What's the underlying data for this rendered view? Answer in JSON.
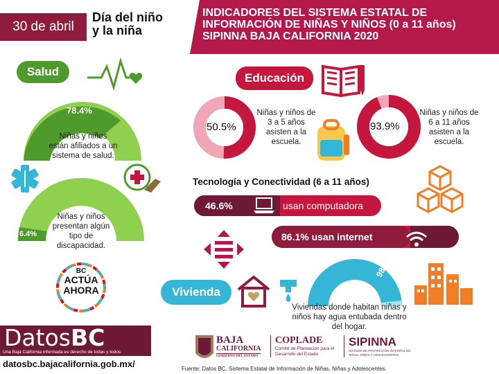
{
  "header": {
    "date": "30 de abril",
    "subtitle_line1": "Día del niño",
    "subtitle_line2": "y la niña",
    "title_line1": "INDICADORES DEL SISTEMA ESTATAL DE",
    "title_line2": "INFORMACIÓN DE NIÑAS Y NIÑOS (0 a 11 años)",
    "title_line3": "SIPINNA BAJA CALIFORNIA 2020"
  },
  "colors": {
    "maroon": "#8f1c3d",
    "crimson": "#c5173e",
    "green": "#4e9a2d",
    "light_green": "#8fd04e",
    "cyan": "#35b6d6",
    "orange": "#f07e26"
  },
  "salud": {
    "label": "Salud",
    "pct_afiliados": "78.4%",
    "pct_afiliados_value": 78.4,
    "afiliados_text": "Niñas y niños están afiliados a un sistema de salud.",
    "pct_discapacidad": "6.4%",
    "pct_discapacidad_value": 6.4,
    "discapacidad_text": "Niñas y niños presentan algún tipo de discapacidad.",
    "icons": [
      "heartbeat-icon",
      "medical-cross-icon",
      "health-hand-icon"
    ]
  },
  "educacion": {
    "label": "Educación",
    "pct_3a5": "50.5%",
    "pct_3a5_value": 50.5,
    "text_3a5": "Niñas y niños de 3 a 5 años asisten a la escuela.",
    "pct_6a11": "93.9%",
    "pct_6a11_value": 93.9,
    "text_6a11": "Niñas y niños de 6 a 11 años asisten a la escuela.",
    "icons": [
      "book-icon",
      "backpack-icon"
    ]
  },
  "tecnologia": {
    "title": "Tecnología y Conectividad (6 a 11 años)",
    "pct_computadora": "46.6%",
    "computadora_text": "usan computadora",
    "internet_text": "86.1% usan internet",
    "pct_internet_value": 86.1,
    "icons": [
      "laptop-icon",
      "wifi-icon",
      "cubes-icon",
      "arrows-icon"
    ]
  },
  "vivienda": {
    "label": "Vivienda",
    "pct_agua": "98.2%",
    "pct_agua_value": 98.2,
    "agua_text": "Viviendas donde habitan niñas y niños hay agua entubada dentro del hogar.",
    "icons": [
      "house-heart-icon",
      "water-tap-icon",
      "buildings-icon"
    ]
  },
  "bc_actua": {
    "line1": "BC",
    "line2": "ACTÚA",
    "line3": "AHORA"
  },
  "footer": {
    "datos_logo_a": "Datos",
    "datos_logo_b": "BC",
    "datos_tagline": "Una Baja California informada es derecho de todas y todos",
    "url": "datosbc.bajacalifornia.gob.mx/",
    "baja_line1": "BAJA",
    "baja_line2": "CALIFORNIA",
    "baja_line3": "GOBIERNO DEL ESTADO",
    "coplade": "COPLADE",
    "coplade_sub": "Comité de Planeación para el Desarrollo del Estado",
    "sipinna": "SIPINNA",
    "sipinna_sub": "SISTEMA DE PROTECCIÓN INTEGRAL DE NIÑAS, NIÑOS Y ADOLESCENTES",
    "fuente": "Fuente: Datos BC, Sistema Estatal de Información de Niñas, Niñas y Adolescentes."
  }
}
